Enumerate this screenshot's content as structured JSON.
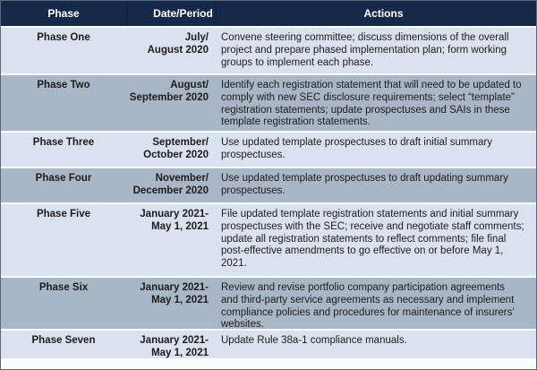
{
  "table": {
    "header": {
      "phase": "Phase",
      "date_period": "Date/Period",
      "actions": "Actions"
    },
    "rows": [
      {
        "phase": "Phase One",
        "date1": "July/",
        "date2": "August 2020",
        "action": "Convene steering committee; discuss dimensions of the overall project and prepare phased implementation plan; form working groups to implement each phase."
      },
      {
        "phase": "Phase Two",
        "date1": "August/",
        "date2": "September 2020",
        "action": "Identify each registration statement that will need to be updated to comply with new SEC disclosure requirements; select “template” registration statements; update prospectuses and SAIs in these template registration statements."
      },
      {
        "phase": "Phase Three",
        "date1": "September/",
        "date2": "October 2020",
        "action": "Use updated template prospectuses to draft initial summary prospectuses."
      },
      {
        "phase": "Phase Four",
        "date1": "November/",
        "date2": "December 2020",
        "action": "Use updated template prospectuses to draft updating summary prospectuses."
      },
      {
        "phase": "Phase Five",
        "date1": "January 2021-",
        "date2": "May 1, 2021",
        "action": "File updated template registration statements and initial summary prospectuses with the SEC; receive and negotiate staff comments; update all registration statements to reflect comments; file final post-effective amendments to go effective on or before May 1, 2021."
      },
      {
        "phase": "Phase Six",
        "date1": "January 2021-",
        "date2": "May 1, 2021",
        "action": "Review and revise portfolio company participation agreements and third-party service agreements as necessary and implement compliance policies and procedures for maintenance of insurers’ websites."
      },
      {
        "phase": "Phase Seven",
        "date1": "January 2021-",
        "date2": "May 1, 2021",
        "action": "Update Rule 38a-1 compliance manuals."
      }
    ]
  },
  "colors": {
    "header_bg": "#16294a",
    "header_text": "#ffffff",
    "row_light": "#dae2f0",
    "row_dark": "#a9b6c6",
    "row_separator": "#fbfcfe",
    "body_text": "#1c1c1c",
    "outer_border": "#5c6878"
  }
}
